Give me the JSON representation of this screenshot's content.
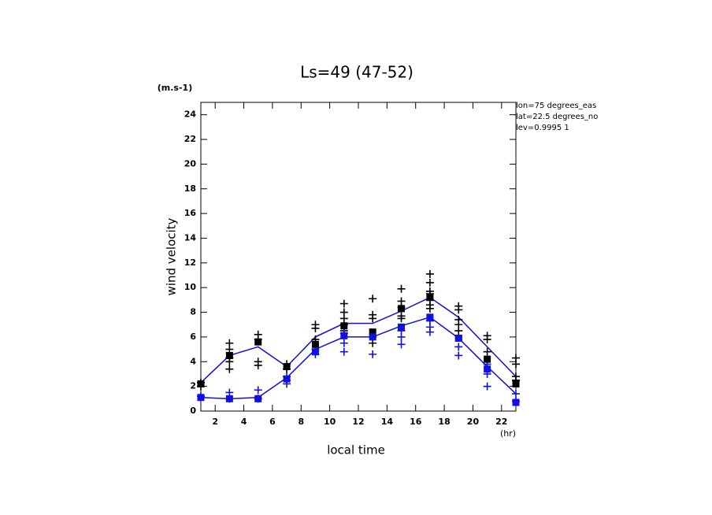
{
  "chart_data": {
    "type": "line",
    "title": "Ls=49 (47-52)",
    "y_unit": "(m.s-1)",
    "x_unit": "(hr)",
    "xlabel": "local time",
    "ylabel": "wind velocity",
    "annotations": [
      "lon=75 degrees_eas",
      "lat=22.5 degrees_no",
      "lev=0.9995 1"
    ],
    "xlim": [
      1,
      23
    ],
    "ylim": [
      0,
      25
    ],
    "xticks": [
      2,
      4,
      6,
      8,
      10,
      12,
      14,
      16,
      18,
      20,
      22
    ],
    "yticks": [
      0,
      2,
      4,
      6,
      8,
      10,
      12,
      14,
      16,
      18,
      20,
      22,
      24
    ],
    "series": [
      {
        "mode": "line",
        "color": "#1010d0",
        "x": [
          1,
          3,
          5,
          7,
          9,
          11,
          13,
          15,
          17,
          19,
          21,
          23
        ],
        "values": [
          2.3,
          4.5,
          5.2,
          3.6,
          6.0,
          7.1,
          7.1,
          8.1,
          9.2,
          7.6,
          5.2,
          2.8
        ]
      },
      {
        "mode": "line",
        "color": "#1010d0",
        "x": [
          1,
          3,
          5,
          7,
          9,
          11,
          13,
          15,
          17,
          19,
          21,
          23
        ],
        "values": [
          1.1,
          1.0,
          1.1,
          2.7,
          5.0,
          6.0,
          6.0,
          6.9,
          7.6,
          5.9,
          3.6,
          1.4
        ]
      },
      {
        "mode": "cross",
        "color": "#000000",
        "x": [
          1,
          1,
          3,
          3,
          3,
          3,
          3,
          5,
          5,
          5,
          5,
          7,
          7,
          9,
          9,
          9,
          11,
          11,
          11,
          11,
          11,
          13,
          13,
          13,
          13,
          15,
          15,
          15,
          15,
          15,
          17,
          17,
          17,
          17,
          17,
          17,
          17,
          19,
          19,
          19,
          19,
          19,
          21,
          21,
          21,
          23,
          23,
          23,
          23
        ],
        "values": [
          2.3,
          2.0,
          5.5,
          5.0,
          4.3,
          4.0,
          3.4,
          6.2,
          5.8,
          4.0,
          3.7,
          3.8,
          3.4,
          7.0,
          6.7,
          5.8,
          8.7,
          8.0,
          7.5,
          7.0,
          6.5,
          9.1,
          7.8,
          7.5,
          5.5,
          9.9,
          8.9,
          8.4,
          7.7,
          7.5,
          11.1,
          10.4,
          9.7,
          9.5,
          9.0,
          8.6,
          8.3,
          8.5,
          8.2,
          7.4,
          7.0,
          6.5,
          6.1,
          5.8,
          4.8,
          4.3,
          3.8,
          2.8,
          2.5
        ]
      },
      {
        "mode": "cross",
        "color": "#1010e0",
        "x": [
          1,
          3,
          3,
          5,
          5,
          7,
          7,
          7,
          9,
          9,
          11,
          11,
          11,
          13,
          13,
          15,
          15,
          15,
          17,
          17,
          17,
          19,
          19,
          21,
          21,
          21,
          23,
          23
        ],
        "values": [
          1.2,
          1.5,
          1.0,
          1.7,
          1.0,
          2.8,
          2.5,
          2.2,
          5.0,
          4.6,
          6.3,
          5.5,
          4.8,
          6.0,
          4.6,
          6.5,
          6.0,
          5.4,
          7.3,
          6.8,
          6.4,
          5.2,
          4.5,
          3.8,
          3.0,
          2.0,
          1.4,
          0.8
        ]
      },
      {
        "mode": "square",
        "color": "#000000",
        "x": [
          1,
          3,
          5,
          7,
          9,
          11,
          13,
          15,
          17,
          19,
          21,
          23
        ],
        "values": [
          2.2,
          4.5,
          5.6,
          3.6,
          5.4,
          6.9,
          6.4,
          8.3,
          9.2,
          5.9,
          4.2,
          2.2
        ]
      },
      {
        "mode": "square",
        "color": "#1010e0",
        "x": [
          1,
          3,
          5,
          7,
          9,
          11,
          13,
          15,
          17,
          19,
          21,
          23
        ],
        "values": [
          1.1,
          1.0,
          1.0,
          2.6,
          4.8,
          6.1,
          6.0,
          6.8,
          7.6,
          5.9,
          3.4,
          0.7
        ]
      }
    ]
  }
}
